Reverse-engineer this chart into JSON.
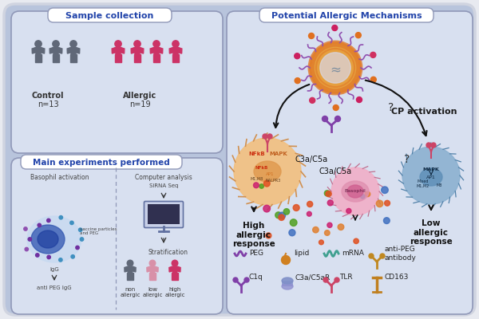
{
  "bg_color": "#b8c4dc",
  "outer_border_color": "#9098b8",
  "panel_bg": "#d8e0f0",
  "panel_border": "#9098b8",
  "title_left_top": "Sample collection",
  "title_left_bottom": "Main experiments performed",
  "title_right": "Potential Allergic Mechanisms",
  "control_label": "Control",
  "control_n": "n=13",
  "allergic_label": "Allergic",
  "allergic_n": "n=19",
  "control_color": "#606878",
  "allergic_color": "#cc3366",
  "cp_activation": "CP activation",
  "c3a_c5a_top": "C3a/C5a",
  "c3a_c5a_bottom": "C3a/C5a",
  "high_allergic_response": "High\nallergic\nresponse",
  "low_allergic_response": "Low\nallergic\nresponse",
  "basophil_activation_label": "Basophil activation",
  "computer_analysis_label": "Computer analysis",
  "sirna_seq_label": "SiRNA Seq",
  "stratification_label": "Stratification",
  "igg_label": "IgG",
  "vaccine_label": "vaccine particles\nand PEG",
  "anti_peg_label": "anti PEG IgG",
  "non_allergic_label": "non\nallergic",
  "low_allergic_label": "low\nallergic",
  "high_allergic_label": "high\nallergic",
  "legend_items": [
    "PEG",
    "lipid",
    "mRNA",
    "anti-PEG\nantibody",
    "C1q",
    "C3a/C5aR",
    "TLR",
    "CD163"
  ],
  "macrophage_color": "#f2c080",
  "macrophage_border": "#d09050",
  "basophil_color": "#f0b0c8",
  "basophil_border": "#c07090",
  "blue_cell_color": "#8ab0d0",
  "blue_cell_border": "#5080a8",
  "peg_color": "#8040a8",
  "lipid_color": "#d08020",
  "mrna_color": "#40a090",
  "anti_peg_color": "#c08820",
  "c1q_color": "#8040a8",
  "tlr_color": "#cc4466",
  "cd163_color": "#c08020",
  "vaccine_orange": "#e08030",
  "vaccine_inner": "#f0b840",
  "vaccine_spike_color": "#9050b0",
  "particle_colors": [
    "#e08030",
    "#50a030",
    "#cc2070",
    "#4070c0",
    "#e05020"
  ],
  "nfkb_color": "#cc3010",
  "mapk_color_text": "#c06020"
}
